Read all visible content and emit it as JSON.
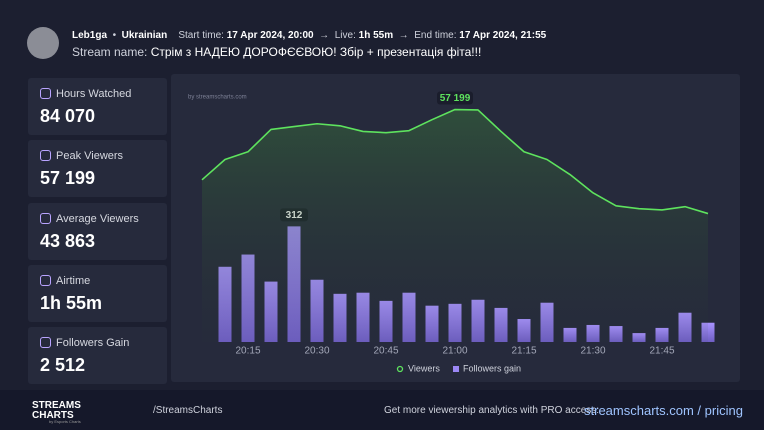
{
  "header": {
    "channel": "Leb1ga",
    "language": "Ukrainian",
    "start_label": "Start time:",
    "start_time": "17 Apr 2024, 20:00",
    "live_label": "Live:",
    "live_time": "1h 55m",
    "end_label": "End time:",
    "end_time": "17 Apr 2024, 21:55",
    "stream_name_label": "Stream name:",
    "stream_name": "Стрім з НАДЕЮ ДОРОФЄЄВОЮ! Збір + презентація фіта!!!"
  },
  "stats": [
    {
      "label": "Hours Watched",
      "value": "84 070"
    },
    {
      "label": "Peak Viewers",
      "value": "57 199"
    },
    {
      "label": "Average Viewers",
      "value": "43 863"
    },
    {
      "label": "Airtime",
      "value": "1h 55m"
    },
    {
      "label": "Followers Gain",
      "value": "2 512"
    }
  ],
  "chart_data": {
    "type": "combo",
    "watermark": "by streamscharts.com",
    "categories": [
      null,
      null,
      "20:15",
      null,
      null,
      "20:30",
      null,
      null,
      "20:45",
      null,
      null,
      "21:00",
      null,
      null,
      "21:15",
      null,
      null,
      "21:30",
      null,
      null,
      "21:45",
      null,
      null
    ],
    "series": [
      {
        "name": "Viewers",
        "type": "line",
        "color": "#5ee35e",
        "axis": "y",
        "values": [
          39900,
          44900,
          46800,
          52300,
          53000,
          53700,
          53200,
          51800,
          51500,
          52000,
          54700,
          57199,
          57100,
          51800,
          46800,
          44900,
          41200,
          36700,
          33500,
          32800,
          32500,
          33300,
          31600
        ],
        "value_labels": [
          null,
          null,
          null,
          null,
          null,
          null,
          null,
          null,
          null,
          null,
          null,
          "57 199",
          null,
          null,
          null,
          null,
          null,
          null,
          null,
          null,
          null,
          null,
          null
        ]
      },
      {
        "name": "Followers gain",
        "type": "bar",
        "color": "#9b87f5",
        "axis": "y2",
        "values": [
          null,
          203,
          236,
          163,
          312,
          168,
          130,
          133,
          111,
          133,
          98,
          103,
          114,
          92,
          62,
          106,
          38,
          46,
          43,
          24,
          38,
          79,
          52
        ]
      }
    ],
    "ylim": [
      0,
      62000
    ],
    "y2lim": [
      0,
      680
    ]
  },
  "footer": {
    "brand": "STREAMS CHARTS",
    "brand_sub": "by Esports Charts",
    "handle": "/StreamsCharts",
    "promo": "Get more viewership analytics with PRO access:",
    "link": "streamscharts.com / pricing"
  }
}
